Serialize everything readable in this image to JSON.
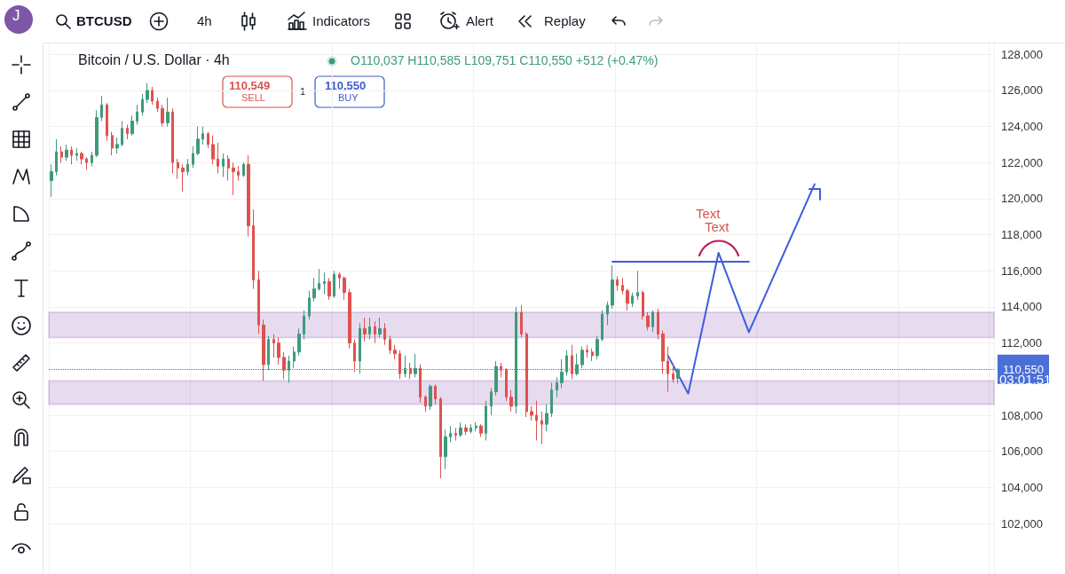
{
  "chart_data": {
    "type": "candlestick",
    "title": "Bitcoin / U.S. Dollar · 4h",
    "subtitle": "O110,037 H110,585 L109,751 C110,550 +512 (+0.47%)",
    "annotations": [
      "J",
      "BTCUSD",
      "4h",
      "Indicators",
      "Alert",
      "Replay",
      "110,549",
      "SELL",
      "1",
      "110,550",
      "BUY",
      "03:01:51",
      "Text",
      "Text"
    ],
    "categories": [
      null,
      null,
      null,
      null,
      null,
      null,
      null,
      null,
      null,
      null,
      null,
      null,
      null,
      null,
      null,
      null,
      null,
      null,
      null,
      null,
      null,
      null,
      null,
      null,
      null,
      null,
      null,
      null,
      null,
      null,
      null,
      null,
      null,
      null,
      null,
      null,
      null,
      null,
      null,
      null,
      null,
      null,
      null,
      null,
      null,
      null,
      null,
      null,
      null,
      null,
      null,
      null,
      null,
      null,
      null,
      null,
      null,
      null,
      null,
      null,
      null,
      null,
      null,
      null,
      null,
      null,
      null,
      null,
      null,
      null,
      null,
      null,
      null,
      null,
      null,
      null,
      null,
      null,
      null,
      null,
      null,
      null,
      null,
      null,
      null,
      null,
      null,
      null,
      null,
      null,
      null,
      null,
      null,
      null,
      null,
      null,
      null,
      null,
      null,
      null,
      null,
      null,
      null,
      null,
      null,
      null,
      null,
      null,
      null,
      null,
      null,
      null,
      null,
      null,
      null,
      null,
      null,
      null,
      null,
      null,
      null,
      null,
      null,
      null,
      null,
      null,
      null,
      null,
      null,
      null,
      null,
      null,
      null,
      null,
      null,
      null,
      null,
      null,
      null,
      null,
      null,
      null,
      null,
      null,
      null,
      null,
      null,
      null,
      null,
      null,
      null,
      null,
      null,
      null,
      null,
      null,
      null,
      null,
      null,
      null,
      null,
      null,
      null,
      null,
      null,
      null,
      null,
      null,
      null,
      null,
      null,
      null,
      null,
      null,
      null,
      null,
      null,
      null,
      null,
      null,
      null,
      null,
      null,
      null,
      null,
      null,
      null
    ],
    "series": [
      {
        "colors": [
          "#3f9a7c",
          "#3f9a7c",
          "#de524f",
          "#3f9a7c",
          "#de524f",
          "#3f9a7c",
          "#de524f",
          "#de524f",
          "#3f9a7c",
          "#3f9a7c",
          "#3f9a7c",
          "#de524f",
          "#de524f",
          "#3f9a7c",
          "#3f9a7c",
          "#de524f",
          "#3f9a7c",
          "#3f9a7c",
          "#3f9a7c",
          "#3f9a7c",
          "#de524f",
          "#de524f",
          "#de524f",
          "#3f9a7c",
          "#de524f",
          "#de524f",
          "#de524f",
          "#3f9a7c",
          "#3f9a7c",
          "#3f9a7c",
          "#3f9a7c",
          "#de524f",
          "#de524f",
          "#de524f",
          "#3f9a7c",
          "#de524f",
          "#de524f",
          "#de524f",
          "#3f9a7c",
          "#de524f",
          "#de524f",
          "#de524f",
          "#de524f",
          "#3f9a7c",
          "#de524f",
          "#de524f",
          "#de524f",
          "#3f9a7c",
          "#3f9a7c",
          "#3f9a7c",
          "#3f9a7c",
          "#3f9a7c",
          "#3f9a7c",
          "#3f9a7c",
          "#3f9a7c",
          "#de524f",
          "#3f9a7c",
          "#de524f",
          "#de524f",
          "#de524f",
          "#de524f",
          "#3f9a7c",
          "#de524f",
          "#3f9a7c",
          "#de524f",
          "#3f9a7c",
          "#de524f",
          "#de524f",
          "#de524f",
          "#de524f",
          "#3f9a7c",
          "#de524f",
          "#3f9a7c",
          "#de524f",
          "#de524f",
          "#3f9a7c",
          "#de524f",
          "#de524f",
          "#3f9a7c",
          "#3f9a7c",
          "#de524f",
          "#3f9a7c",
          "#de524f",
          "#3f9a7c",
          "#3f9a7c",
          "#de524f",
          "#3f9a7c",
          "#3f9a7c",
          "#3f9a7c",
          "#de524f",
          "#de524f",
          "#de524f",
          "#3f9a7c",
          "#de524f",
          "#de524f",
          "#de524f",
          "#de524f",
          "#de524f",
          "#3f9a7c",
          "#3f9a7c",
          "#3f9a7c",
          "#3f9a7c",
          "#3f9a7c",
          "#de524f",
          "#3f9a7c",
          "#3f9a7c",
          "#de524f",
          "#de524f",
          "#3f9a7c",
          "#3f9a7c",
          "#3f9a7c",
          "#3f9a7c",
          "#de524f",
          "#de524f",
          "#de524f",
          "#3f9a7c",
          "#3f9a7c",
          "#de524f",
          "#de524f",
          "#3f9a7c",
          "#de524f",
          "#de524f",
          "#de524f",
          "#de524f",
          "#3f9a7c",
          null,
          null,
          null,
          null,
          null,
          null,
          null,
          null,
          null,
          null,
          null,
          null,
          null,
          null,
          null,
          null,
          null,
          null,
          null,
          null,
          null,
          null,
          null,
          null,
          null,
          null,
          null,
          null,
          null,
          null,
          null,
          null,
          null,
          null,
          null,
          null,
          null,
          null,
          null,
          null,
          null,
          null,
          null,
          null,
          null,
          null,
          null,
          null,
          null,
          null,
          null,
          null,
          null,
          null,
          null,
          null,
          null,
          null,
          null,
          null,
          null,
          null
        ],
        "ohlc": [
          [
            121000,
            121900,
            120100,
            121500
          ],
          [
            121500,
            123300,
            121300,
            122600
          ],
          [
            122600,
            122900,
            122000,
            122300
          ],
          [
            122300,
            123000,
            122100,
            122700
          ],
          [
            122700,
            122900,
            121900,
            122400
          ],
          [
            122400,
            122800,
            122100,
            122500
          ],
          [
            122500,
            122600,
            121900,
            122200
          ],
          [
            122200,
            122300,
            121600,
            122000
          ],
          [
            122000,
            122600,
            121800,
            122400
          ],
          [
            122400,
            124900,
            122300,
            124500
          ],
          [
            124500,
            125700,
            124300,
            125200
          ],
          [
            125200,
            125300,
            123200,
            123500
          ],
          [
            123500,
            123700,
            122400,
            122800
          ],
          [
            122800,
            123400,
            122500,
            123000
          ],
          [
            123000,
            124300,
            122900,
            123900
          ],
          [
            123900,
            124100,
            123300,
            123600
          ],
          [
            123600,
            124600,
            123500,
            124300
          ],
          [
            124300,
            125200,
            124100,
            124800
          ],
          [
            124800,
            125800,
            124600,
            125500
          ],
          [
            125500,
            126400,
            125300,
            126000
          ],
          [
            126000,
            126200,
            125200,
            125400
          ],
          [
            125400,
            125600,
            124800,
            125000
          ],
          [
            125000,
            125200,
            124000,
            124200
          ],
          [
            124200,
            125600,
            124000,
            124800
          ],
          [
            124800,
            125000,
            121400,
            122000
          ],
          [
            122000,
            122200,
            121100,
            121700
          ],
          [
            121700,
            121900,
            120400,
            121500
          ],
          [
            121500,
            122200,
            121300,
            121900
          ],
          [
            121900,
            122900,
            121700,
            122500
          ],
          [
            122500,
            124000,
            122400,
            123300
          ],
          [
            123300,
            124000,
            123000,
            123600
          ],
          [
            123600,
            123700,
            122800,
            123000
          ],
          [
            123000,
            123500,
            121900,
            122200
          ],
          [
            122200,
            123100,
            121400,
            121800
          ],
          [
            121800,
            122500,
            121200,
            122200
          ],
          [
            122200,
            122400,
            121000,
            121700
          ],
          [
            121700,
            122000,
            120200,
            121500
          ],
          [
            121500,
            121800,
            121000,
            121300
          ],
          [
            121300,
            122000,
            121200,
            121900
          ],
          [
            121900,
            122400,
            117900,
            118500
          ],
          [
            118500,
            119400,
            115000,
            115500
          ],
          [
            115500,
            116000,
            112500,
            113000
          ],
          [
            113000,
            113300,
            109900,
            110800
          ],
          [
            110800,
            112400,
            110500,
            112200
          ],
          [
            112200,
            112500,
            111200,
            112000
          ],
          [
            112000,
            112300,
            110800,
            111200
          ],
          [
            111200,
            111500,
            110000,
            110500
          ],
          [
            110500,
            111300,
            109800,
            111000
          ],
          [
            111000,
            111800,
            110600,
            111500
          ],
          [
            111500,
            112800,
            111300,
            112500
          ],
          [
            112500,
            113800,
            112200,
            113500
          ],
          [
            113500,
            114900,
            113300,
            114500
          ],
          [
            114500,
            115600,
            114300,
            115000
          ],
          [
            115000,
            116100,
            114900,
            115300
          ],
          [
            115300,
            115900,
            114700,
            115400
          ],
          [
            115400,
            115600,
            114400,
            114600
          ],
          [
            114600,
            116000,
            114500,
            115800
          ],
          [
            115800,
            115900,
            115000,
            115600
          ],
          [
            115600,
            115700,
            114400,
            114800
          ],
          [
            114800,
            115000,
            111700,
            112000
          ],
          [
            112000,
            112200,
            110400,
            111000
          ],
          [
            111000,
            113100,
            110300,
            112800
          ],
          [
            112800,
            113400,
            112100,
            112500
          ],
          [
            112500,
            113400,
            112200,
            112900
          ],
          [
            112900,
            113200,
            112000,
            112500
          ],
          [
            112500,
            113400,
            112300,
            112800
          ],
          [
            112800,
            113100,
            111900,
            112200
          ],
          [
            112200,
            112400,
            111400,
            111600
          ],
          [
            111600,
            111900,
            111100,
            111400
          ],
          [
            111400,
            111600,
            110000,
            110300
          ],
          [
            110300,
            111300,
            110100,
            110600
          ],
          [
            110600,
            110900,
            110000,
            110300
          ],
          [
            110300,
            111400,
            110100,
            110600
          ],
          [
            110600,
            110800,
            108700,
            109000
          ],
          [
            109000,
            109100,
            108200,
            108500
          ],
          [
            108500,
            109700,
            108300,
            109600
          ],
          [
            109600,
            109700,
            108600,
            108900
          ],
          [
            108900,
            109000,
            104500,
            105700
          ],
          [
            105700,
            107200,
            105000,
            106800
          ],
          [
            106800,
            107400,
            106500,
            107000
          ],
          [
            107000,
            107300,
            106600,
            106900
          ],
          [
            106900,
            107600,
            106800,
            107300
          ],
          [
            107300,
            107500,
            106900,
            107100
          ],
          [
            107100,
            107500,
            107000,
            107300
          ],
          [
            107300,
            107600,
            107100,
            107400
          ],
          [
            107400,
            107500,
            106800,
            107000
          ],
          [
            107000,
            108800,
            106600,
            108500
          ],
          [
            108500,
            109500,
            108000,
            109300
          ],
          [
            109300,
            111000,
            109100,
            110700
          ],
          [
            110700,
            110900,
            110100,
            110500
          ],
          [
            110500,
            110600,
            108800,
            109000
          ],
          [
            109000,
            109400,
            108200,
            108500
          ],
          [
            108500,
            114000,
            108100,
            113700
          ],
          [
            113700,
            114100,
            112300,
            112500
          ],
          [
            112500,
            112600,
            107900,
            108200
          ],
          [
            108200,
            108500,
            107700,
            108000
          ],
          [
            108000,
            108800,
            106600,
            107700
          ],
          [
            107700,
            108200,
            106400,
            107500
          ],
          [
            107500,
            108600,
            107100,
            108100
          ],
          [
            108100,
            109800,
            107900,
            109400
          ],
          [
            109400,
            110100,
            109000,
            109800
          ],
          [
            109800,
            111100,
            109500,
            110400
          ],
          [
            110400,
            111600,
            110200,
            111300
          ],
          [
            111300,
            111900,
            110000,
            110300
          ],
          [
            110300,
            111400,
            110200,
            110800
          ],
          [
            110800,
            111800,
            110600,
            111600
          ],
          [
            111600,
            111900,
            111200,
            111500
          ],
          [
            111500,
            111700,
            111000,
            111300
          ],
          [
            111300,
            112400,
            111100,
            112200
          ],
          [
            112200,
            113800,
            112100,
            113600
          ],
          [
            113600,
            114300,
            113000,
            114100
          ],
          [
            114100,
            116300,
            113900,
            115500
          ],
          [
            115500,
            115700,
            114900,
            115200
          ],
          [
            115200,
            115600,
            114700,
            114900
          ],
          [
            114900,
            115000,
            113800,
            114200
          ],
          [
            114200,
            114800,
            114000,
            114600
          ],
          [
            114600,
            116000,
            114400,
            114800
          ],
          [
            114800,
            114900,
            113300,
            113500
          ],
          [
            113500,
            113700,
            112700,
            112900
          ],
          [
            112900,
            113800,
            112600,
            113700
          ],
          [
            113700,
            113900,
            112200,
            112500
          ],
          [
            112500,
            112700,
            110300,
            111000
          ],
          [
            111000,
            111800,
            109300,
            110300
          ],
          [
            110300,
            110800,
            109800,
            110000
          ],
          [
            110037,
            110585,
            109751,
            110550
          ],
          null,
          null,
          null,
          null,
          null,
          null,
          null,
          null,
          null,
          null,
          null,
          null,
          null,
          null,
          null,
          null,
          null,
          null,
          null,
          null,
          null,
          null,
          null,
          null,
          null,
          null,
          null,
          null,
          null,
          null,
          null,
          null,
          null,
          null,
          null,
          null,
          null,
          null,
          null,
          null,
          null,
          null,
          null,
          null,
          null,
          null,
          null,
          null,
          null,
          null,
          null,
          null,
          null,
          null,
          null,
          null,
          null,
          null,
          null,
          null,
          null,
          null
        ]
      },
      {
        "type": "line",
        "color": "#3d5ce0",
        "values": [
          null,
          null,
          null,
          null,
          null,
          null,
          null,
          null,
          null,
          null,
          null,
          null,
          null,
          null,
          null,
          null,
          null,
          null,
          null,
          null,
          null,
          null,
          null,
          null,
          null,
          null,
          null,
          null,
          null,
          null,
          null,
          null,
          null,
          null,
          null,
          null,
          null,
          null,
          null,
          null,
          null,
          null,
          null,
          null,
          null,
          null,
          null,
          null,
          null,
          null,
          null,
          null,
          null,
          null,
          null,
          null,
          null,
          null,
          null,
          null,
          null,
          null,
          null,
          null,
          null,
          null,
          null,
          null,
          null,
          null,
          null,
          null,
          null,
          null,
          null,
          null,
          null,
          null,
          null,
          null,
          null,
          null,
          null,
          null,
          null,
          null,
          null,
          null,
          null,
          null,
          null,
          null,
          null,
          null,
          null,
          null,
          null,
          null,
          null,
          null,
          null,
          null,
          null,
          null,
          null,
          null,
          null,
          null,
          null,
          null,
          null,
          null,
          null,
          null,
          null,
          null,
          null,
          null,
          null,
          null,
          null,
          null,
          111300,
          null,
          null,
          null,
          109200,
          null,
          null,
          null,
          null,
          null,
          117000,
          null,
          null,
          null,
          null,
          null,
          112600,
          null,
          null,
          null,
          null,
          null,
          null,
          null,
          null,
          null,
          null,
          null,
          null,
          120800,
          null,
          null,
          null,
          null,
          null,
          null,
          null,
          null,
          null,
          null,
          null,
          null,
          null,
          null,
          null,
          null,
          null,
          null,
          null,
          null,
          null,
          null,
          null,
          null,
          null,
          null,
          null,
          null,
          null,
          null,
          null,
          null,
          null,
          null,
          null
        ]
      },
      {
        "type": "line",
        "color": "#3d5ce0",
        "values": [
          null,
          null,
          null,
          null,
          null,
          null,
          null,
          null,
          null,
          null,
          null,
          null,
          null,
          null,
          null,
          null,
          null,
          null,
          null,
          null,
          null,
          null,
          null,
          null,
          null,
          null,
          null,
          null,
          null,
          null,
          null,
          null,
          null,
          null,
          null,
          null,
          null,
          null,
          null,
          null,
          null,
          null,
          null,
          null,
          null,
          null,
          null,
          null,
          null,
          null,
          null,
          null,
          null,
          null,
          null,
          null,
          null,
          null,
          null,
          null,
          null,
          null,
          null,
          null,
          null,
          null,
          null,
          null,
          null,
          null,
          null,
          null,
          null,
          null,
          null,
          null,
          null,
          null,
          null,
          null,
          null,
          null,
          null,
          null,
          null,
          null,
          null,
          null,
          null,
          null,
          null,
          null,
          null,
          null,
          null,
          null,
          null,
          null,
          null,
          null,
          null,
          null,
          null,
          null,
          null,
          null,
          null,
          null,
          null,
          null,
          null,
          116500,
          null,
          null,
          null,
          null,
          null,
          null,
          null,
          null,
          null,
          null,
          null,
          null,
          null,
          null,
          null,
          null,
          null,
          null,
          null,
          null,
          null,
          null,
          null,
          null,
          null,
          null,
          116500,
          null,
          null,
          null,
          null,
          null,
          null,
          null,
          null,
          null,
          null,
          null,
          null,
          null,
          null,
          null,
          null,
          null,
          null,
          null,
          null,
          null,
          null,
          null,
          null,
          null,
          null,
          null,
          null,
          null,
          null,
          null,
          null,
          null,
          null,
          null,
          null,
          null,
          null,
          null,
          null,
          null,
          null,
          null,
          null,
          null,
          null,
          null,
          null
        ]
      }
    ],
    "ylim": [
      99200,
      128600
    ],
    "yticks": [
      {
        "value": 102000,
        "label": "102,000"
      },
      {
        "value": 104000,
        "label": "104,000"
      },
      {
        "value": 106000,
        "label": "106,000"
      },
      {
        "value": 108000,
        "label": "108,000"
      },
      {
        "value": 112000,
        "label": "112,000"
      },
      {
        "value": 114000,
        "label": "114,000"
      },
      {
        "value": 116000,
        "label": "116,000"
      },
      {
        "value": 118000,
        "label": "118,000"
      },
      {
        "value": 120000,
        "label": "120,000"
      },
      {
        "value": 122000,
        "label": "122,000"
      },
      {
        "value": 124000,
        "label": "124,000"
      },
      {
        "value": 126000,
        "label": "126,000"
      },
      {
        "value": 128000,
        "label": "128,000"
      }
    ],
    "grid": true,
    "tick_labels": "y",
    "ref_lines": [
      {
        "axis": "y",
        "value": 110550,
        "label": "110,550",
        "color": "#4a6fd6",
        "line_style": "dotted"
      }
    ],
    "bands": [
      {
        "axis": "y",
        "from": 112300,
        "to": 113700,
        "color": "#7b35a8"
      },
      {
        "axis": "y",
        "from": 108600,
        "to": 109900,
        "color": "#7b35a8"
      }
    ]
  }
}
